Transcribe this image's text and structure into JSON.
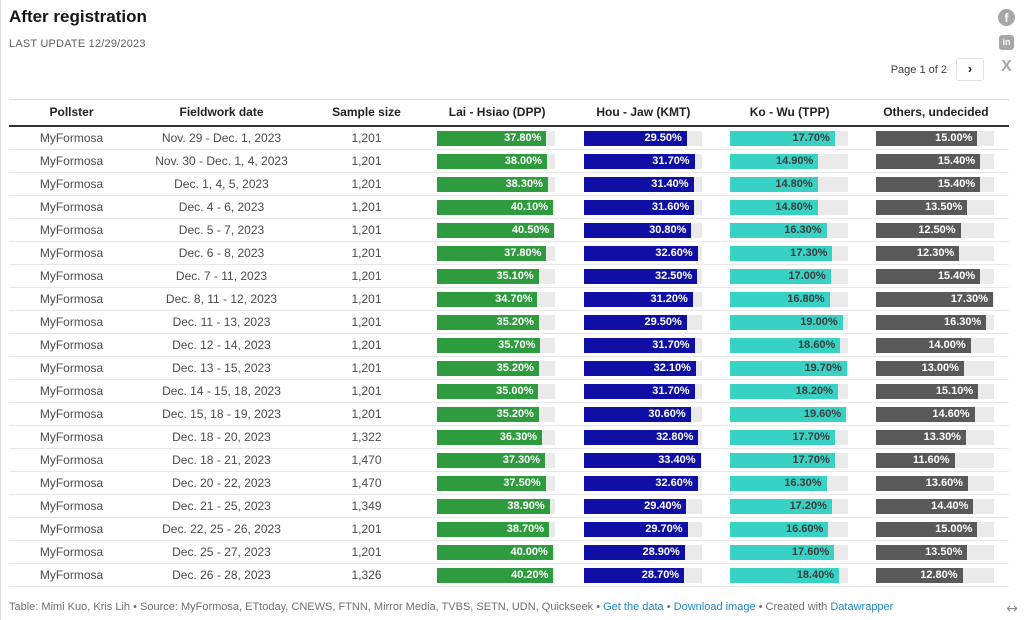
{
  "title": "After registration",
  "subtitle": "LAST UPDATE 12/29/2023",
  "pagination": {
    "label": "Page 1 of 2",
    "next_glyph": "›"
  },
  "share": {
    "facebook_glyph": "f",
    "linkedin_glyph": "in",
    "x_glyph": "X"
  },
  "resize_glyph": "↔",
  "colors": {
    "dpp": "#2e9b3e",
    "kmt": "#0f0fa5",
    "tpp": "#38d2c5",
    "others": "#595959",
    "track": "#eaeaea",
    "link_blue": "#1e87c5"
  },
  "footer": {
    "separator": " • ",
    "parts": [
      {
        "t": "text",
        "v": "Table: Mimi Kuo, Kris Lih"
      },
      {
        "t": "sep"
      },
      {
        "t": "text",
        "v": "Source: MyFormosa, ETtoday, CNEWS, FTNN, Mirror Media, TVBS, SETN, UDN, Quickseek"
      },
      {
        "t": "sep"
      },
      {
        "t": "link",
        "v": "Get the data",
        "name": "get-the-data-link"
      },
      {
        "t": "sep"
      },
      {
        "t": "link",
        "v": "Download image",
        "name": "download-image-link"
      },
      {
        "t": "sep"
      },
      {
        "t": "text",
        "v": "Created with "
      },
      {
        "t": "link",
        "v": "Datawrapper",
        "name": "datawrapper-link"
      }
    ]
  },
  "chart_data": {
    "type": "table",
    "title": "After registration",
    "subtitle": "LAST UPDATE 12/29/2023",
    "columns": [
      "Pollster",
      "Fieldwork date",
      "Sample size",
      "Lai - Hsiao (DPP)",
      "Hou - Jaw (KMT)",
      "Ko - Wu (TPP)",
      "Others, undecided"
    ],
    "bar_columns": [
      "dpp",
      "kmt",
      "tpp",
      "others"
    ],
    "bar_max": [
      40.5,
      33.4,
      19.7,
      17.3
    ],
    "value_unit": "%",
    "rows": [
      [
        "MyFormosa",
        "Nov. 29 - Dec. 1, 2023",
        "1,201",
        37.8,
        29.5,
        17.7,
        15.0
      ],
      [
        "MyFormosa",
        "Nov. 30 - Dec. 1, 4, 2023",
        "1,201",
        38.0,
        31.7,
        14.9,
        15.4
      ],
      [
        "MyFormosa",
        "Dec. 1, 4, 5, 2023",
        "1,201",
        38.3,
        31.4,
        14.8,
        15.4
      ],
      [
        "MyFormosa",
        "Dec. 4 - 6, 2023",
        "1,201",
        40.1,
        31.6,
        14.8,
        13.5
      ],
      [
        "MyFormosa",
        "Dec. 5 - 7, 2023",
        "1,201",
        40.5,
        30.8,
        16.3,
        12.5
      ],
      [
        "MyFormosa",
        "Dec. 6 - 8, 2023",
        "1,201",
        37.8,
        32.6,
        17.3,
        12.3
      ],
      [
        "MyFormosa",
        "Dec. 7 - 11, 2023",
        "1,201",
        35.1,
        32.5,
        17.0,
        15.4
      ],
      [
        "MyFormosa",
        "Dec. 8, 11 - 12, 2023",
        "1,201",
        34.7,
        31.2,
        16.8,
        17.3
      ],
      [
        "MyFormosa",
        "Dec. 11 - 13, 2023",
        "1,201",
        35.2,
        29.5,
        19.0,
        16.3
      ],
      [
        "MyFormosa",
        "Dec. 12 - 14, 2023",
        "1,201",
        35.7,
        31.7,
        18.6,
        14.0
      ],
      [
        "MyFormosa",
        "Dec. 13 - 15, 2023",
        "1,201",
        35.2,
        32.1,
        19.7,
        13.0
      ],
      [
        "MyFormosa",
        "Dec. 14 - 15, 18, 2023",
        "1,201",
        35.0,
        31.7,
        18.2,
        15.1
      ],
      [
        "MyFormosa",
        "Dec. 15, 18 - 19, 2023",
        "1,201",
        35.2,
        30.6,
        19.6,
        14.6
      ],
      [
        "MyFormosa",
        "Dec. 18 - 20, 2023",
        "1,322",
        36.3,
        32.8,
        17.7,
        13.3
      ],
      [
        "MyFormosa",
        "Dec. 18 - 21, 2023",
        "1,470",
        37.3,
        33.4,
        17.7,
        11.6
      ],
      [
        "MyFormosa",
        "Dec. 20 - 22, 2023",
        "1,470",
        37.5,
        32.6,
        16.3,
        13.6
      ],
      [
        "MyFormosa",
        "Dec. 21 - 25, 2023",
        "1,349",
        38.9,
        29.4,
        17.2,
        14.4
      ],
      [
        "MyFormosa",
        "Dec. 22, 25 - 26, 2023",
        "1,201",
        38.7,
        29.7,
        16.6,
        15.0
      ],
      [
        "MyFormosa",
        "Dec. 25 - 27, 2023",
        "1,201",
        40.0,
        28.9,
        17.6,
        13.5
      ],
      [
        "MyFormosa",
        "Dec. 26 - 28, 2023",
        "1,326",
        40.2,
        28.7,
        18.4,
        12.8
      ]
    ]
  }
}
